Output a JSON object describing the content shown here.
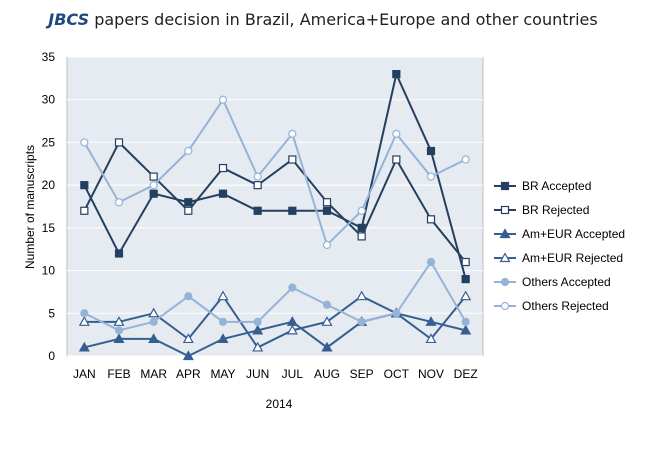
{
  "chart_data": {
    "type": "line",
    "title_italic": "JBCS",
    "title_rest": " papers decision in Brazil, America+Europe and other countries",
    "xlabel": "2014",
    "ylabel": "Number of manuscripts",
    "categories": [
      "JAN",
      "FEB",
      "MAR",
      "APR",
      "MAY",
      "JUN",
      "JUL",
      "AUG",
      "SEP",
      "OCT",
      "NOV",
      "DEZ"
    ],
    "ylim": [
      0,
      35
    ],
    "yticks": [
      0,
      5,
      10,
      15,
      20,
      25,
      30,
      35
    ],
    "grid": true,
    "legend_position": "right",
    "series": [
      {
        "name": "BR Accepted",
        "color": "#243f60",
        "marker": "square",
        "filled": true,
        "values": [
          20,
          12,
          19,
          18,
          19,
          17,
          17,
          17,
          15,
          33,
          24,
          9
        ]
      },
      {
        "name": "BR Rejected",
        "color": "#243f60",
        "marker": "square",
        "filled": false,
        "values": [
          17,
          25,
          21,
          17,
          22,
          20,
          23,
          18,
          14,
          23,
          16,
          11
        ]
      },
      {
        "name": "Am+EUR Accepted",
        "color": "#365f91",
        "marker": "triangle",
        "filled": true,
        "values": [
          1,
          2,
          2,
          0,
          2,
          3,
          4,
          1,
          4,
          5,
          4,
          3
        ]
      },
      {
        "name": "Am+EUR Rejected",
        "color": "#365f91",
        "marker": "triangle",
        "filled": false,
        "values": [
          4,
          4,
          5,
          2,
          7,
          1,
          3,
          4,
          7,
          5,
          2,
          7
        ]
      },
      {
        "name": "Others Accepted",
        "color": "#95b3d7",
        "marker": "circle",
        "filled": true,
        "values": [
          5,
          3,
          4,
          7,
          4,
          4,
          8,
          6,
          4,
          5,
          11,
          4
        ]
      },
      {
        "name": "Others Rejected",
        "color": "#95b3d7",
        "marker": "circle",
        "filled": false,
        "values": [
          25,
          18,
          20,
          24,
          30,
          21,
          26,
          13,
          17,
          26,
          21,
          23
        ]
      }
    ]
  }
}
